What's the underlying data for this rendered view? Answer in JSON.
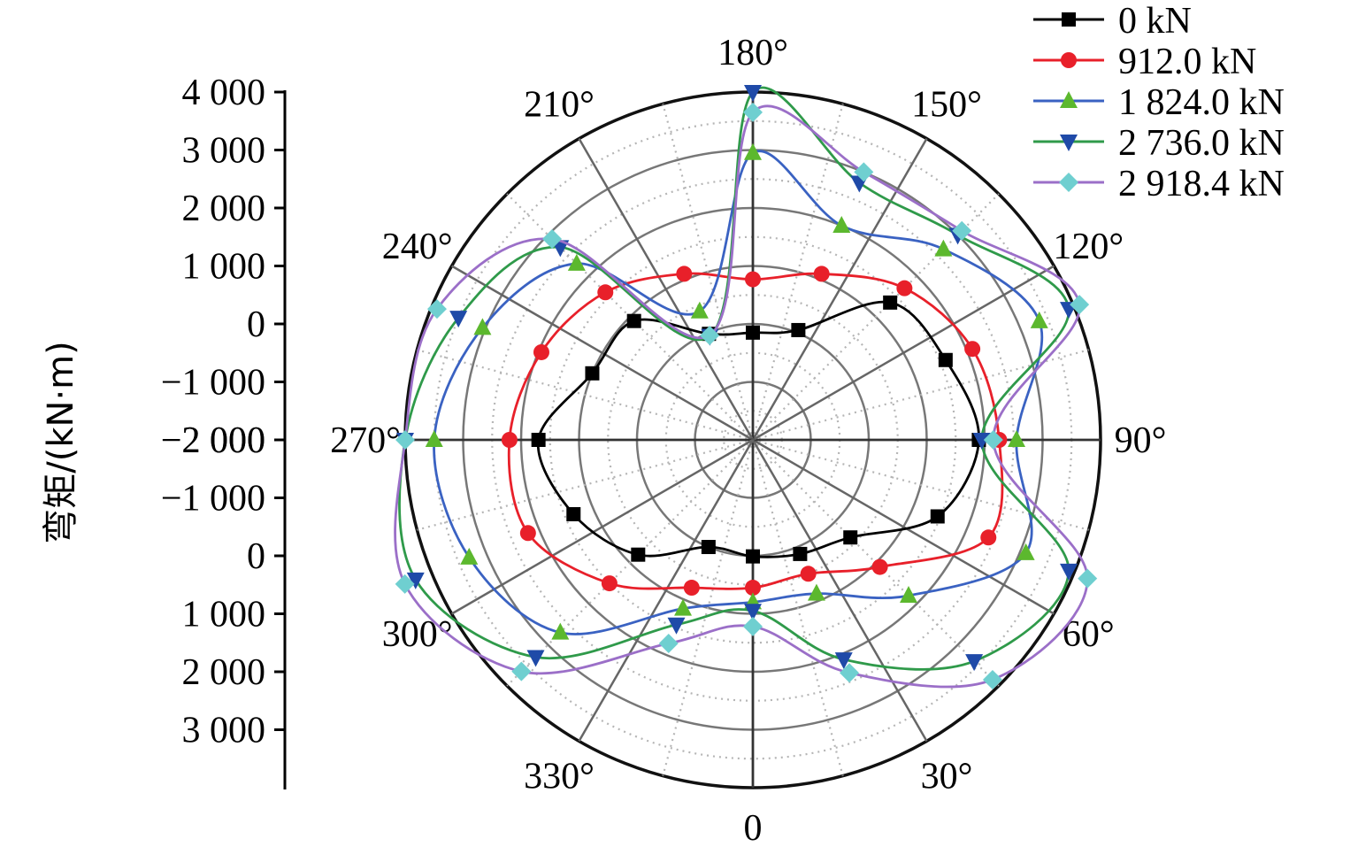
{
  "chart_data": {
    "type": "polar-line",
    "title": "",
    "ylabel": "弯矩/(kN·m)",
    "radial_range": [
      -2000,
      4000
    ],
    "radial_ticks": [
      -2000,
      -1000,
      0,
      1000,
      2000,
      3000,
      4000
    ],
    "radial_tick_labels_top": [
      "−2 000",
      "−1 000",
      "0",
      "1 000",
      "2 000",
      "3 000",
      "4 000"
    ],
    "radial_tick_labels_bottom": [
      "3 000",
      "2 000",
      "1 000",
      "0",
      "−1 000",
      "−2 000"
    ],
    "angle_ticks": [
      0,
      30,
      60,
      90,
      120,
      150,
      180,
      210,
      240,
      270,
      300,
      330
    ],
    "angle_labels": [
      "0",
      "30°",
      "60°",
      "90°",
      "120°",
      "150°",
      "180°",
      "210°",
      "240°",
      "270°",
      "300°",
      "330°"
    ],
    "angle_direction": "0 at bottom, increasing counter-clockwise",
    "grid": true,
    "legend_position": "top-right",
    "angles": [
      0,
      22.5,
      45,
      67.5,
      90,
      112.5,
      135,
      157.5,
      180,
      202.5,
      225,
      247.5,
      270,
      292.5,
      315,
      337.5
    ],
    "series": [
      {
        "name": "0 kN",
        "color": "#000000",
        "marker": "square",
        "values": [
          10,
          130,
          380,
          1450,
          1900,
          1600,
          1350,
          50,
          -150,
          -20,
          900,
          1000,
          1700,
          1350,
          800,
          0
        ]
      },
      {
        "name": "912.0 kN",
        "color": "#e8202a",
        "marker": "circle",
        "values": [
          550,
          500,
          1100,
          2400,
          2250,
          2100,
          1700,
          1100,
          770,
          1100,
          1600,
          1950,
          2200,
          2200,
          1500,
          760
        ]
      },
      {
        "name": "1 824.0 kN",
        "color": "#5cb82e",
        "marker": "triangle-up",
        "values": [
          800,
          870,
          1800,
          3100,
          2550,
          3350,
          2650,
          2000,
          2950,
          400,
          2300,
          3050,
          3500,
          3300,
          2700,
          1150
        ]
      },
      {
        "name": "2 736.0 kN",
        "color": "#1f4aa8",
        "marker": "triangle-down",
        "values": [
          950,
          2100,
          3400,
          3900,
          1950,
          3900,
          3000,
          2800,
          4000,
          -60,
          2700,
          3500,
          4000,
          4300,
          3300,
          1450
        ]
      },
      {
        "name": "2 918.4 kN",
        "color": "#6fcfd0",
        "marker": "diamond",
        "values": [
          1220,
          2350,
          3850,
          4250,
          2150,
          4100,
          3100,
          3000,
          3650,
          -50,
          2900,
          3900,
          4000,
          4500,
          3650,
          1800
        ]
      }
    ],
    "series_line_colors": [
      "#000000",
      "#e8202a",
      "#3a62c2",
      "#2f9a4a",
      "#9b6fc8"
    ]
  }
}
